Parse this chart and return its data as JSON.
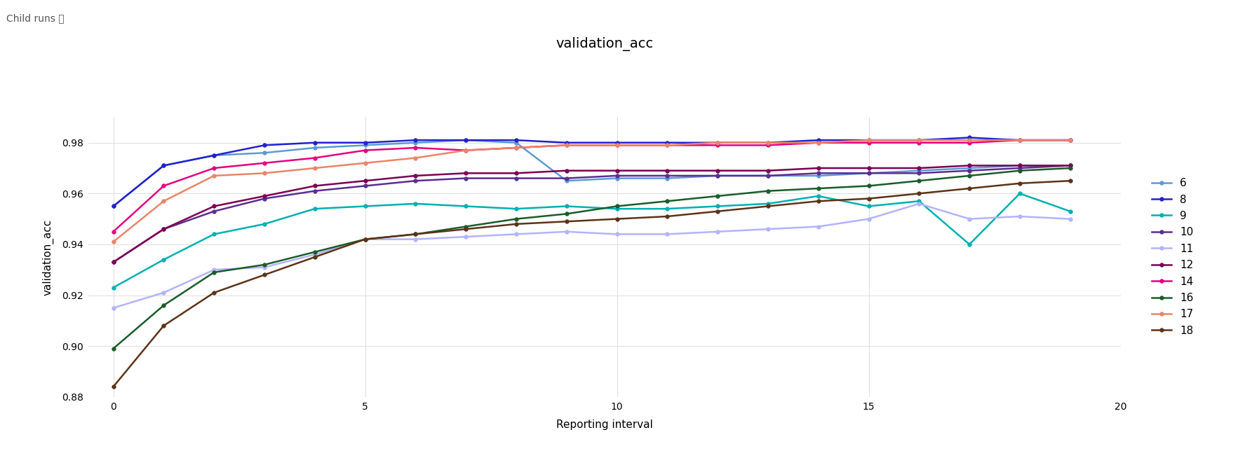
{
  "title": "validation_acc",
  "xlabel": "Reporting interval",
  "ylabel": "validation_acc",
  "header_text": "Child runs ⓘ",
  "x": [
    0,
    1,
    2,
    3,
    4,
    5,
    6,
    7,
    8,
    9,
    10,
    11,
    12,
    13,
    14,
    15,
    16,
    17,
    18,
    19
  ],
  "series": [
    {
      "label": "6",
      "color": "#5b9bd5",
      "values": [
        0.955,
        0.971,
        0.975,
        0.976,
        0.978,
        0.979,
        0.98,
        0.981,
        0.98,
        0.965,
        0.966,
        0.966,
        0.967,
        0.967,
        0.967,
        0.968,
        0.969,
        0.97,
        0.971,
        0.971
      ]
    },
    {
      "label": "8",
      "color": "#2222cc",
      "values": [
        0.955,
        0.971,
        0.975,
        0.979,
        0.98,
        0.98,
        0.981,
        0.981,
        0.981,
        0.98,
        0.98,
        0.98,
        0.98,
        0.98,
        0.981,
        0.981,
        0.981,
        0.982,
        0.981,
        0.981
      ]
    },
    {
      "label": "9",
      "color": "#00b0b0",
      "values": [
        0.923,
        0.934,
        0.944,
        0.948,
        0.954,
        0.955,
        0.956,
        0.955,
        0.954,
        0.955,
        0.954,
        0.954,
        0.955,
        0.956,
        0.959,
        0.955,
        0.957,
        0.94,
        0.96,
        0.953
      ]
    },
    {
      "label": "10",
      "color": "#5c2d91",
      "values": [
        0.933,
        0.946,
        0.953,
        0.958,
        0.961,
        0.963,
        0.965,
        0.966,
        0.966,
        0.966,
        0.967,
        0.967,
        0.967,
        0.967,
        0.968,
        0.968,
        0.968,
        0.969,
        0.97,
        0.971
      ]
    },
    {
      "label": "11",
      "color": "#b3b3ff",
      "values": [
        0.915,
        0.921,
        0.93,
        0.931,
        0.936,
        0.942,
        0.942,
        0.943,
        0.944,
        0.945,
        0.944,
        0.944,
        0.945,
        0.946,
        0.947,
        0.95,
        0.956,
        0.95,
        0.951,
        0.95
      ]
    },
    {
      "label": "12",
      "color": "#7b0051",
      "values": [
        0.933,
        0.946,
        0.955,
        0.959,
        0.963,
        0.965,
        0.967,
        0.968,
        0.968,
        0.969,
        0.969,
        0.969,
        0.969,
        0.969,
        0.97,
        0.97,
        0.97,
        0.971,
        0.971,
        0.971
      ]
    },
    {
      "label": "14",
      "color": "#e6007e",
      "values": [
        0.945,
        0.963,
        0.97,
        0.972,
        0.974,
        0.977,
        0.978,
        0.977,
        0.978,
        0.979,
        0.979,
        0.979,
        0.979,
        0.979,
        0.98,
        0.98,
        0.98,
        0.98,
        0.981,
        0.981
      ]
    },
    {
      "label": "16",
      "color": "#1a5c2a",
      "values": [
        0.899,
        0.916,
        0.929,
        0.932,
        0.937,
        0.942,
        0.944,
        0.947,
        0.95,
        0.952,
        0.955,
        0.957,
        0.959,
        0.961,
        0.962,
        0.963,
        0.965,
        0.967,
        0.969,
        0.97
      ]
    },
    {
      "label": "17",
      "color": "#e8856a",
      "values": [
        0.941,
        0.957,
        0.967,
        0.968,
        0.97,
        0.972,
        0.974,
        0.977,
        0.978,
        0.979,
        0.979,
        0.979,
        0.98,
        0.98,
        0.98,
        0.981,
        0.981,
        0.981,
        0.981,
        0.981
      ]
    },
    {
      "label": "18",
      "color": "#5c3317",
      "values": [
        0.884,
        0.908,
        0.921,
        0.928,
        0.935,
        0.942,
        0.944,
        0.946,
        0.948,
        0.949,
        0.95,
        0.951,
        0.953,
        0.955,
        0.957,
        0.958,
        0.96,
        0.962,
        0.964,
        0.965
      ]
    }
  ],
  "xlim": [
    -0.5,
    20
  ],
  "ylim": [
    0.88,
    0.99
  ],
  "yticks": [
    0.88,
    0.9,
    0.92,
    0.94,
    0.96,
    0.98
  ],
  "xticks": [
    0,
    5,
    10,
    15,
    20
  ],
  "grid_color": "#e0e0e0",
  "bg_color": "#ffffff",
  "title_fontsize": 14,
  "axis_label_fontsize": 11,
  "tick_fontsize": 10,
  "legend_fontsize": 11
}
